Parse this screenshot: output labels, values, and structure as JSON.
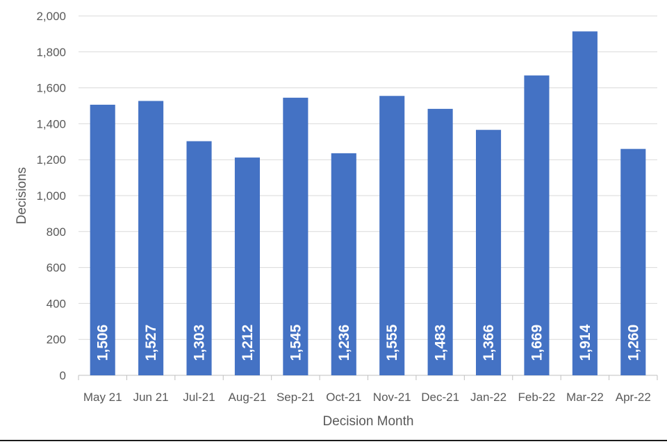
{
  "chart_data": {
    "type": "bar",
    "title": "",
    "xlabel": "Decision Month",
    "ylabel": "Decisions",
    "categories": [
      "May 21",
      "Jun 21",
      "Jul-21",
      "Aug-21",
      "Sep-21",
      "Oct-21",
      "Nov-21",
      "Dec-21",
      "Jan-22",
      "Feb-22",
      "Mar-22",
      "Apr-22"
    ],
    "values": [
      1506,
      1527,
      1303,
      1212,
      1545,
      1236,
      1555,
      1483,
      1366,
      1669,
      1914,
      1260
    ],
    "data_labels": [
      "1,506",
      "1,527",
      "1,303",
      "1,212",
      "1,545",
      "1,236",
      "1,555",
      "1,483",
      "1,366",
      "1,669",
      "1,914",
      "1,260"
    ],
    "ylim": [
      0,
      2000
    ],
    "yticks": [
      0,
      200,
      400,
      600,
      800,
      1000,
      1200,
      1400,
      1600,
      1800,
      2000
    ],
    "ytick_labels": [
      "0",
      "200",
      "400",
      "600",
      "800",
      "1,000",
      "1,200",
      "1,400",
      "1,600",
      "1,800",
      "2,000"
    ],
    "grid": true,
    "legend": "none",
    "bar_color": "#4472c4",
    "grid_color": "#d9d9d9",
    "label_color": "#ffffff"
  }
}
